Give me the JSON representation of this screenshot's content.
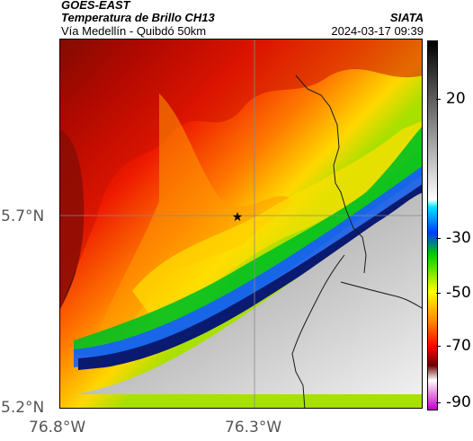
{
  "header": {
    "satellite": "GOES-EAST",
    "product": "Temperatura de Brillo CH13",
    "region": "Vía Medellín - Quibdó 50km",
    "org": "SIATA",
    "timestamp": "2024-03-17 09:39"
  },
  "map": {
    "lat_labels": [
      "5.7°N",
      "5.2°N"
    ],
    "lon_labels": [
      "76.8°W",
      "76.3°W"
    ],
    "marker_icon": "star-icon",
    "cloud_colors": [
      "#3a0a0a",
      "#b00000",
      "#ff2a00",
      "#ff8a00",
      "#ffe100",
      "#9fe000",
      "#00c000",
      "#1860ff",
      "#0a1a70",
      "#9a9a9a",
      "#e6e6e6"
    ]
  },
  "colorbar": {
    "labels": [
      "20",
      "-30",
      "-50",
      "-70",
      "-90"
    ],
    "colors": [
      "#000000",
      "#ffffff",
      "#00e5ff",
      "#003cff",
      "#00d000",
      "#ffff00",
      "#ff8800",
      "#ff0000",
      "#6a0000",
      "#ffffff",
      "#c000c0"
    ]
  }
}
